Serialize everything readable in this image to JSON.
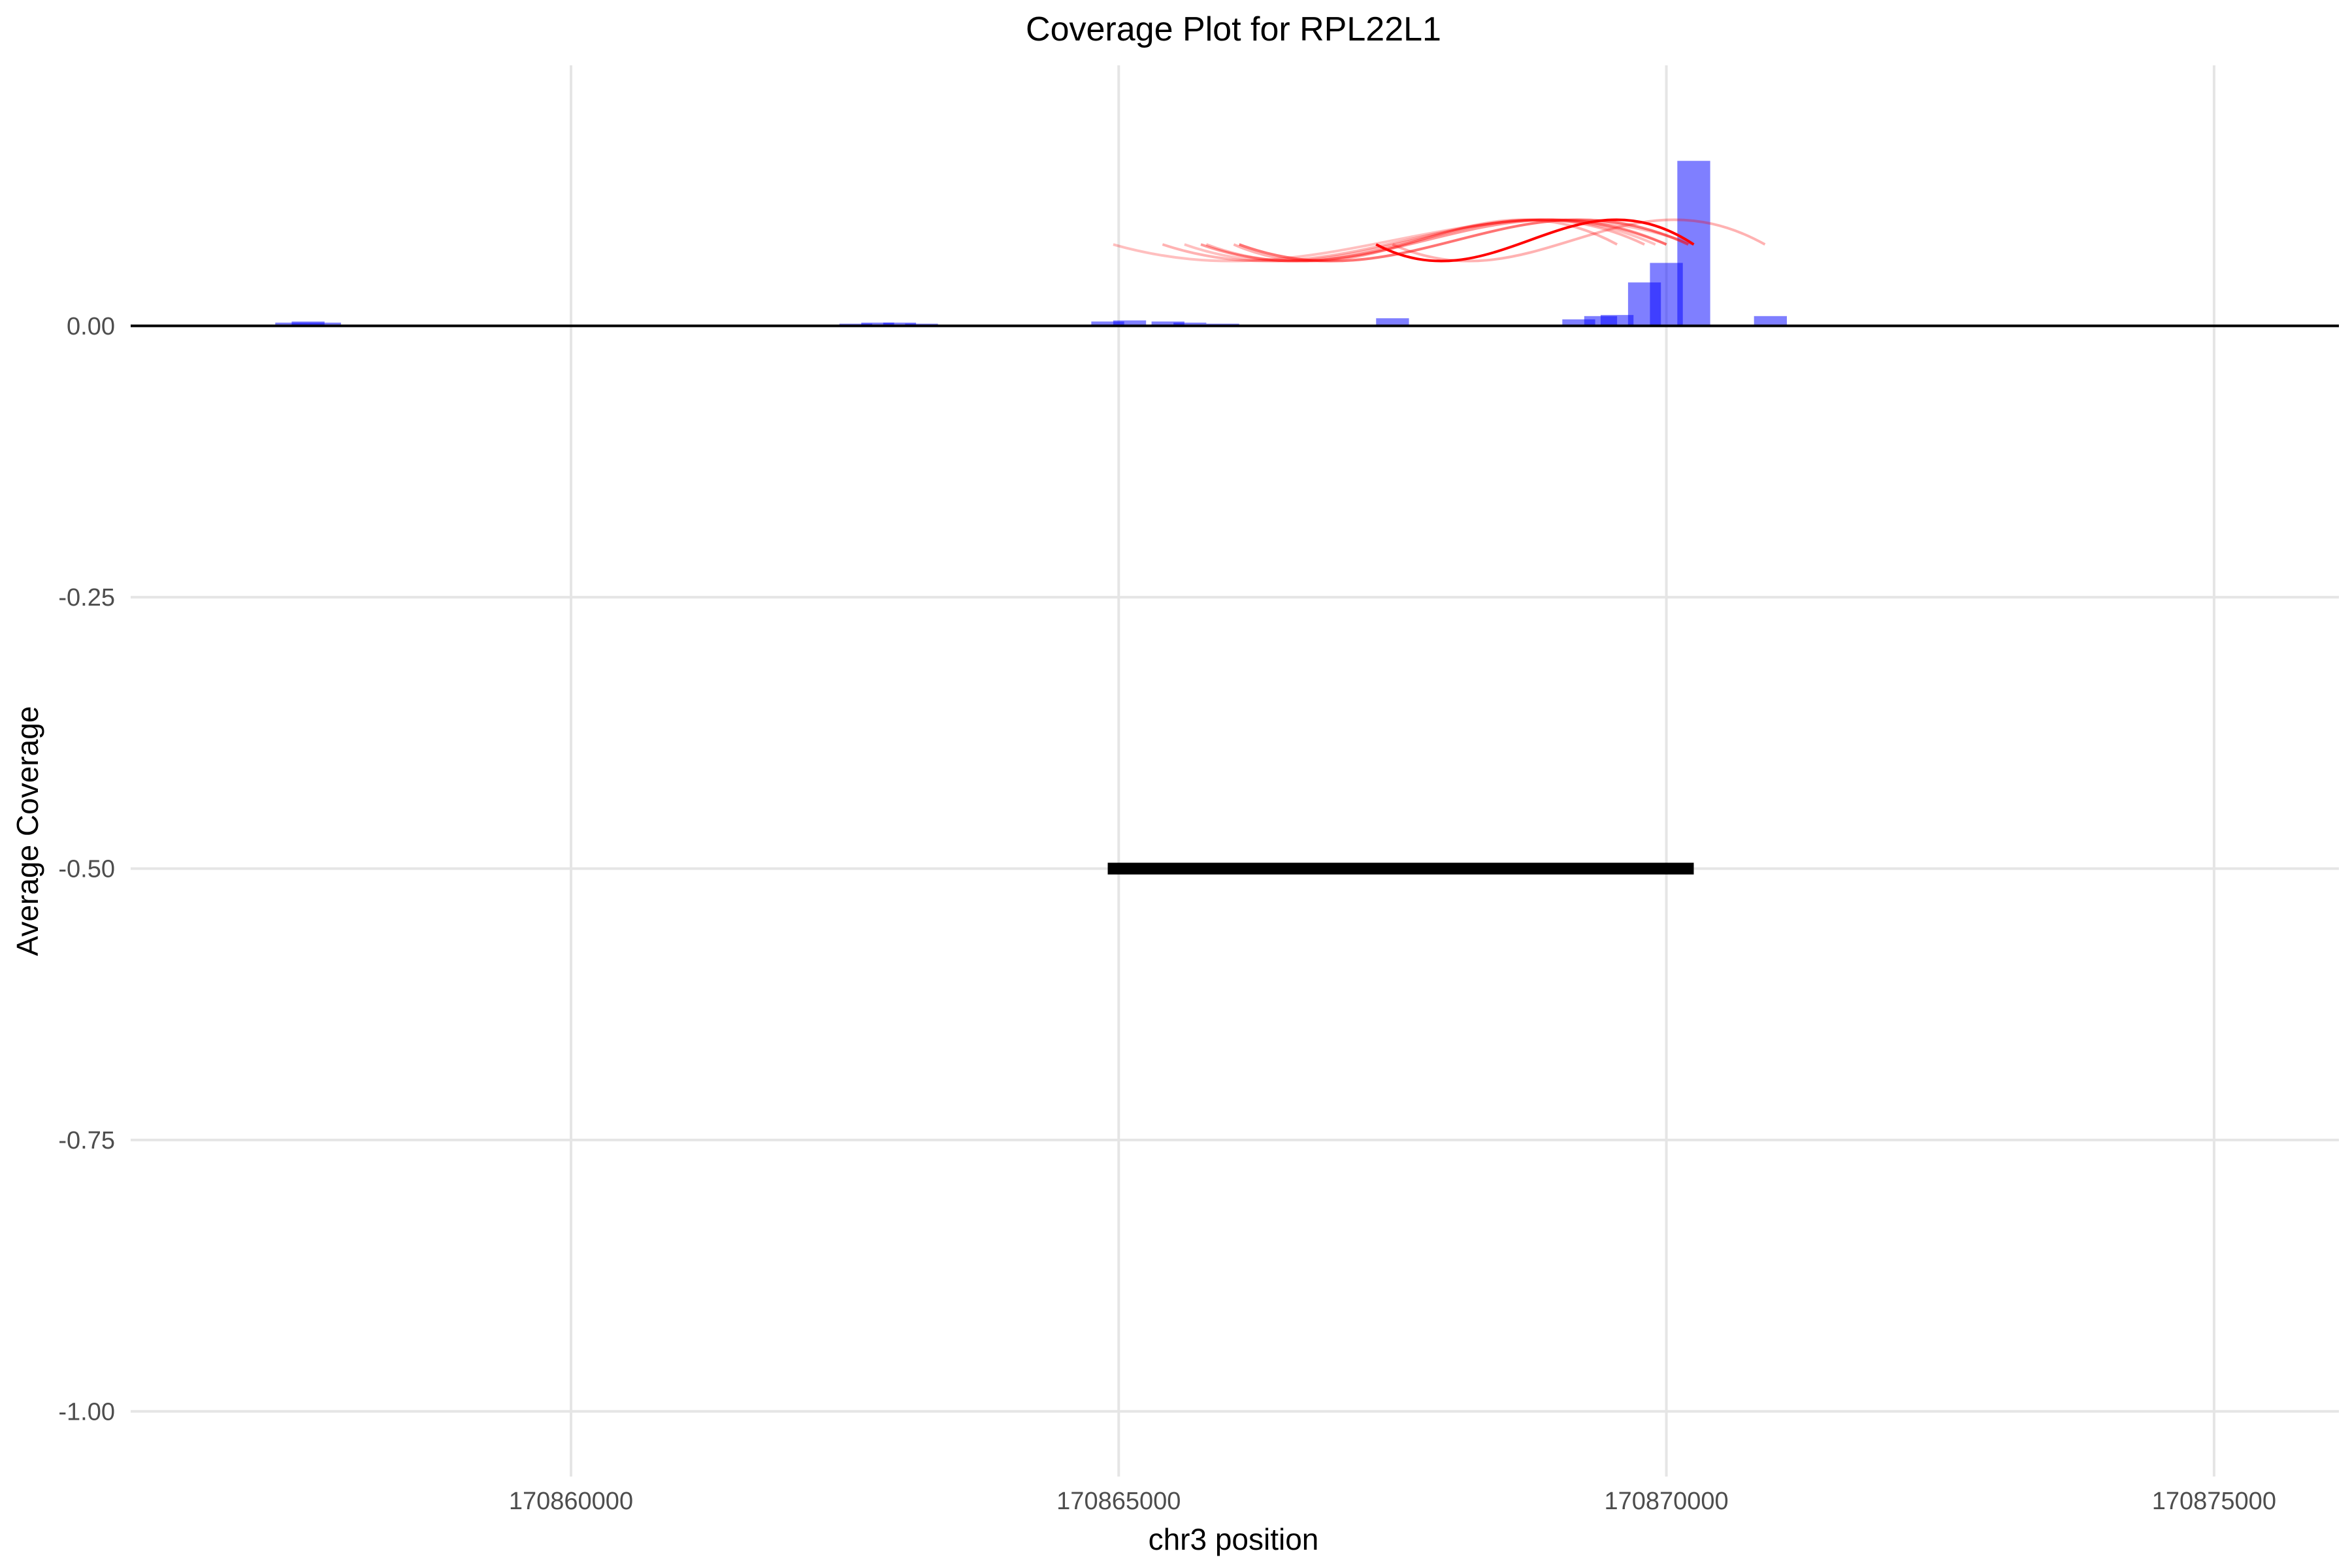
{
  "chart_data": {
    "type": "bar",
    "title": "Coverage Plot for RPL22L1",
    "xlabel": "chr3 position",
    "ylabel": "Average Coverage",
    "xlim": [
      170855980,
      170876140
    ],
    "ylim": [
      -1.06,
      0.24
    ],
    "xticks": [
      170860000,
      170865000,
      170870000,
      170875000
    ],
    "yticks": [
      0.0,
      -0.25,
      -0.5,
      -0.75,
      -1.0
    ],
    "ytick_labels": [
      "0.00",
      "-0.25",
      "-0.50",
      "-0.75",
      "-1.00"
    ],
    "grid": true,
    "legend": "none",
    "colors": {
      "bar": "#0000ff",
      "arc": "#ff0000",
      "gene": "#000000",
      "baseline": "#000000",
      "grid": "#e5e5e5"
    },
    "coverage_bars": [
      {
        "start": 170857000,
        "end": 170857300,
        "value": 0.001
      },
      {
        "start": 170857300,
        "end": 170857600,
        "value": 0.003
      },
      {
        "start": 170857450,
        "end": 170857750,
        "value": 0.004
      },
      {
        "start": 170857600,
        "end": 170857900,
        "value": 0.003
      },
      {
        "start": 170857900,
        "end": 170858200,
        "value": 0.001
      },
      {
        "start": 170858750,
        "end": 170859050,
        "value": 0.001
      },
      {
        "start": 170862200,
        "end": 170862500,
        "value": 0.001
      },
      {
        "start": 170862450,
        "end": 170862750,
        "value": 0.002
      },
      {
        "start": 170862650,
        "end": 170862950,
        "value": 0.003
      },
      {
        "start": 170862850,
        "end": 170863150,
        "value": 0.003
      },
      {
        "start": 170863050,
        "end": 170863350,
        "value": 0.002
      },
      {
        "start": 170863500,
        "end": 170863800,
        "value": 0.001
      },
      {
        "start": 170864750,
        "end": 170865050,
        "value": 0.004
      },
      {
        "start": 170864950,
        "end": 170865250,
        "value": 0.005
      },
      {
        "start": 170865300,
        "end": 170865600,
        "value": 0.004
      },
      {
        "start": 170865500,
        "end": 170865800,
        "value": 0.003
      },
      {
        "start": 170865800,
        "end": 170866100,
        "value": 0.002
      },
      {
        "start": 170867350,
        "end": 170867650,
        "value": 0.007
      },
      {
        "start": 170869050,
        "end": 170869350,
        "value": 0.006
      },
      {
        "start": 170869250,
        "end": 170869550,
        "value": 0.009
      },
      {
        "start": 170869400,
        "end": 170869700,
        "value": 0.01
      },
      {
        "start": 170869650,
        "end": 170869950,
        "value": 0.04
      },
      {
        "start": 170869850,
        "end": 170870150,
        "value": 0.058
      },
      {
        "start": 170870100,
        "end": 170870400,
        "value": 0.152
      },
      {
        "start": 170870800,
        "end": 170871100,
        "value": 0.009
      }
    ],
    "junction_arcs": [
      {
        "start": 170864950,
        "end": 170870250,
        "opacity": 0.25
      },
      {
        "start": 170865400,
        "end": 170870000,
        "opacity": 0.3
      },
      {
        "start": 170865600,
        "end": 170869900,
        "opacity": 0.25
      },
      {
        "start": 170865800,
        "end": 170869800,
        "opacity": 0.3
      },
      {
        "start": 170866050,
        "end": 170869550,
        "opacity": 0.3
      },
      {
        "start": 170865750,
        "end": 170870000,
        "opacity": 0.4
      },
      {
        "start": 170866100,
        "end": 170870200,
        "opacity": 0.55
      },
      {
        "start": 170867350,
        "end": 170870250,
        "opacity": 1.0
      },
      {
        "start": 170867500,
        "end": 170870900,
        "opacity": 0.3
      }
    ],
    "gene": {
      "start": 170864900,
      "end": 170870250,
      "y": -0.5
    }
  }
}
